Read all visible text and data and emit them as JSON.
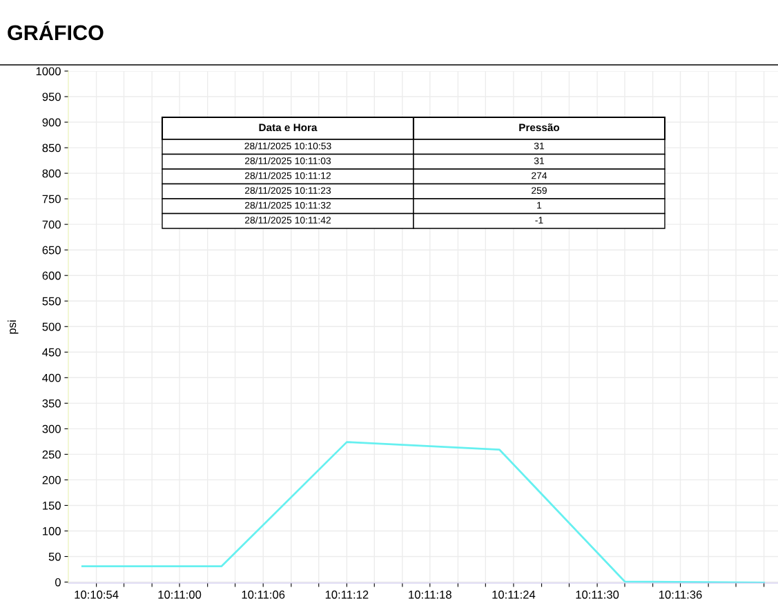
{
  "chart_data": [
    {
      "type": "line",
      "title": "GRÁFICO",
      "ylabel": "psi",
      "x": [
        10.18139,
        10.18417,
        10.18667,
        10.18972,
        10.19222,
        10.195
      ],
      "series": [
        {
          "color": "#66f0f0",
          "values": [
            31,
            31,
            274,
            259,
            1,
            -1
          ]
        }
      ],
      "xlim": [
        10.18111,
        10.19528
      ],
      "xticks": [
        {
          "value": 10.18167,
          "label": "10:10:54"
        },
        {
          "value": 10.18222,
          "label": null
        },
        {
          "value": 10.18278,
          "label": null
        },
        {
          "value": 10.18333,
          "label": "10:11:00"
        },
        {
          "value": 10.18389,
          "label": null
        },
        {
          "value": 10.18444,
          "label": null
        },
        {
          "value": 10.185,
          "label": "10:11:06"
        },
        {
          "value": 10.18556,
          "label": null
        },
        {
          "value": 10.18611,
          "label": null
        },
        {
          "value": 10.18667,
          "label": "10:11:12"
        },
        {
          "value": 10.18722,
          "label": null
        },
        {
          "value": 10.18778,
          "label": null
        },
        {
          "value": 10.18833,
          "label": "10:11:18"
        },
        {
          "value": 10.18889,
          "label": null
        },
        {
          "value": 10.18944,
          "label": null
        },
        {
          "value": 10.19,
          "label": "10:11:24"
        },
        {
          "value": 10.19056,
          "label": null
        },
        {
          "value": 10.19111,
          "label": null
        },
        {
          "value": 10.19167,
          "label": "10:11:30"
        },
        {
          "value": 10.19222,
          "label": null
        },
        {
          "value": 10.19278,
          "label": null
        },
        {
          "value": 10.19333,
          "label": "10:11:36"
        },
        {
          "value": 10.19389,
          "label": null
        },
        {
          "value": 10.19444,
          "label": null
        },
        {
          "value": 10.195,
          "label": null
        }
      ],
      "ylim": [
        -2,
        1000
      ],
      "yticks": [
        0,
        50,
        100,
        150,
        200,
        250,
        300,
        350,
        400,
        450,
        500,
        550,
        600,
        650,
        700,
        750,
        800,
        850,
        900,
        950,
        1000
      ],
      "grid": true,
      "marker": "none",
      "line_style": "solid"
    },
    {
      "type": "other",
      "annotations": [
        "Data e Hora",
        "Pressão",
        "28/11/2025 10:10:53",
        "31",
        "28/11/2025 10:11:03",
        "31",
        "28/11/2025 10:11:12",
        "274",
        "28/11/2025 10:11:23",
        "259",
        "28/11/2025 10:11:32",
        "1",
        "28/11/2025 10:11:42",
        "-1"
      ]
    }
  ]
}
